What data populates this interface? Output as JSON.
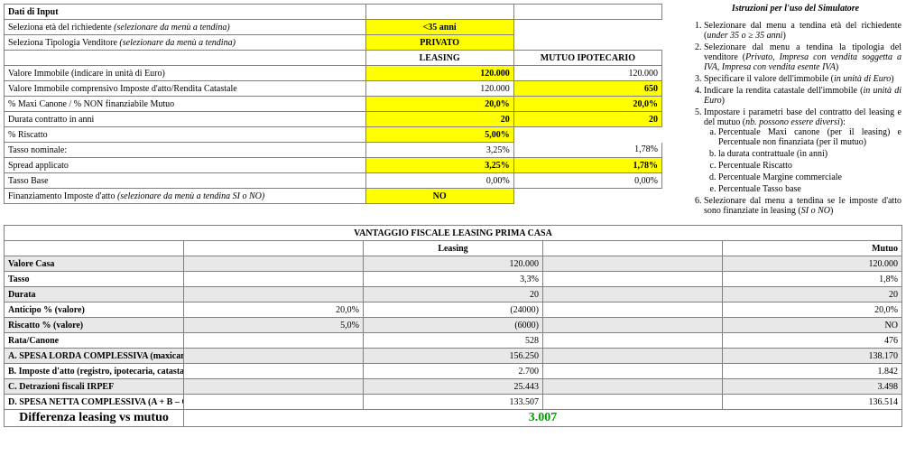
{
  "colors": {
    "highlight": "#ffff00",
    "border": "#808080",
    "shade": "#e8e8e8",
    "diff": "#00a000",
    "bg": "#ffffff",
    "text": "#000000"
  },
  "top": {
    "header": {
      "label": "Dati di Input",
      "a": "",
      "b": ""
    },
    "rows": [
      {
        "label": "Seleziona età del richiedente  (selezionare da menù a tendina)",
        "a": "<35 anni",
        "b": "",
        "a_yellow": true,
        "a_center": true,
        "italic_part": true,
        "b_blank": true
      },
      {
        "label": "Seleziona Tipologia Venditore  (selezionare da menù a tendina)",
        "a": "PRIVATO",
        "b": "",
        "a_yellow": true,
        "a_center": true,
        "italic_part": true,
        "b_blank": true
      },
      {
        "label": "",
        "a": "LEASING",
        "b": "MUTUO IPOTECARIO",
        "header_row": true
      },
      {
        "label": "Valore Immobile (indicare in unità di Euro)",
        "a": "120.000",
        "b": "120.000",
        "a_yellow": true
      },
      {
        "label": "Valore Immobile comprensivo Imposte d'atto/Rendita Catastale",
        "a": "120.000",
        "b": "650",
        "b_yellow": true
      },
      {
        "label": "% Maxi Canone / % NON finanziabile Mutuo",
        "a": "20,0%",
        "b": "20,0%",
        "a_yellow": true,
        "b_yellow": true
      },
      {
        "label": "Durata contratto in anni",
        "a": "20",
        "b": "20",
        "a_yellow": true,
        "b_yellow": true
      },
      {
        "label": "% Riscatto",
        "a": "5,00%",
        "b": "",
        "a_yellow": true,
        "b_blank": true
      },
      {
        "label": "Tasso nominale:",
        "a": "3,25%",
        "b": "1,78%"
      },
      {
        "label": "Spread applicato",
        "a": "3,25%",
        "b": "1,78%",
        "a_yellow": true,
        "b_yellow": true
      },
      {
        "label": "Tasso Base",
        "a": "0,00%",
        "b": "0,00%"
      },
      {
        "label": "Finanziamento Imposte d'atto (selezionare da menù a tendina SI o NO)",
        "a": "NO",
        "b": "",
        "a_yellow": true,
        "a_center": true,
        "italic_part": true,
        "b_blank": true
      }
    ]
  },
  "instr": {
    "title": "Istruzioni per l'uso del Simulatore",
    "items": [
      "Selezionare dal menu a tendina età del richiedente (<i>under 35 o ≥ 35 anni</i>)",
      "Selezionare dal menu a tendina la tipologia del venditore (<i>Privato, Impresa con vendita soggetta a IVA, Impresa con vendita esente IVA</i>)",
      "Specificare il valore dell'immobile (<i>in unità di Euro</i>)",
      "Indicare la rendita catastale dell'immobile (<i>in unità di Euro</i>)",
      "Impostare i parametri base del contratto del leasing e del mutuo (<i>nb. possono essere diversi</i>):",
      "Selezionare dal menu a tendina se le imposte d'atto sono finanziate in leasing (<i>SI o NO</i>)"
    ],
    "sub5": [
      "Percentuale Maxi canone (per il leasing) e Percentuale non finanziata (per il mutuo)",
      "la durata contrattuale (in anni)",
      "Percentuale Riscatto",
      "Percentuale Margine commerciale",
      "Percentuale Tasso base"
    ]
  },
  "bottom": {
    "title": "VANTAGGIO FISCALE LEASING PRIMA CASA",
    "col_a": "Leasing",
    "col_b": "Mutuo",
    "rows": [
      {
        "label": "Valore Casa",
        "sub": "",
        "a": "120.000",
        "sub2": "",
        "b": "120.000",
        "shade": true
      },
      {
        "label": "Tasso",
        "sub": "",
        "a": "3,3%",
        "sub2": "",
        "b": "1,8%"
      },
      {
        "label": "Durata",
        "sub": "",
        "a": "20",
        "sub2": "",
        "b": "20",
        "shade": true
      },
      {
        "label": "Anticipo % (valore)",
        "sub": "20,0%",
        "a": "(24000)",
        "sub2": "",
        "b": "20,0%"
      },
      {
        "label": "Riscatto % (valore)",
        "sub": "5,0%",
        "a": "(6000)",
        "sub2": "",
        "b": "NO",
        "shade": true
      },
      {
        "label": "Rata/Canone",
        "sub": "",
        "a": "528",
        "sub2": "",
        "b": "476"
      },
      {
        "label": "A.    SPESA LORDA COMPLESSIVA (maxicanone + canoni + Riscatto) (in",
        "sub": "",
        "a": "156.250",
        "sub2": "",
        "b": "138.170",
        "shade": true
      },
      {
        "label": "B.    Imposte d'atto (registro, ipotecaria, catastale, sostitutiva)",
        "sub": "",
        "a": "2.700",
        "sub2": "",
        "b": "1.842"
      },
      {
        "label": "C.    Detrazioni fiscali IRPEF",
        "sub": "",
        "a": "25.443",
        "sub2": "",
        "b": "3.498",
        "shade": true
      },
      {
        "label": "D.    SPESA NETTA COMPLESSIVA (A + B – C)",
        "sub": "",
        "a": "133.507",
        "sub2": "",
        "b": "136.514"
      }
    ],
    "diff_label": "Differenza leasing vs mutuo",
    "diff_value": "3.007"
  }
}
